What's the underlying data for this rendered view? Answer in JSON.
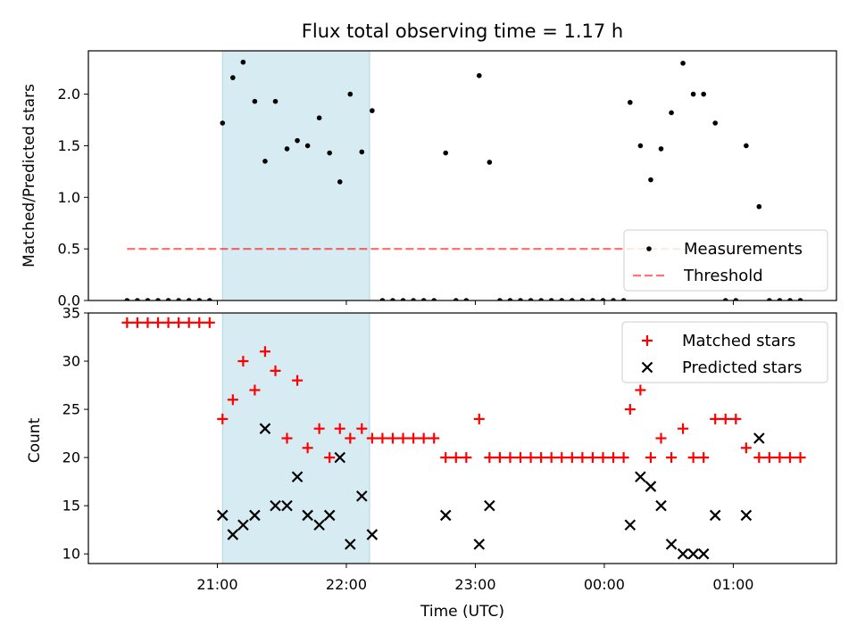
{
  "chart_data": {
    "type": "scatter",
    "title": "Flux total observing time = 1.17 h",
    "xlabel": "Time (UTC)",
    "x_tick_labels": [
      "21:00",
      "22:00",
      "23:00",
      "00:00",
      "01:00"
    ],
    "x_tick_hours": [
      21,
      22,
      23,
      24,
      25
    ],
    "xlim": [
      20.0,
      25.8
    ],
    "shaded_span_hours": [
      21.04,
      22.18
    ],
    "colors": {
      "span": "#add8e6",
      "measurements": "#000000",
      "threshold": "#ff0000",
      "matched": "#ff0000",
      "predicted": "#000000"
    },
    "panels": [
      {
        "ylabel": "Matched/Predicted stars",
        "ylim": [
          0,
          2.42
        ],
        "y_ticks": [
          0.0,
          0.5,
          1.0,
          1.5,
          2.0
        ],
        "y_tick_labels": [
          "0.0",
          "0.5",
          "1.0",
          "1.5",
          "2.0"
        ],
        "threshold": {
          "value": 0.5,
          "x_range": [
            20.3,
            25.53
          ]
        },
        "legend": {
          "position": "lower-right",
          "entries": [
            "Measurements",
            "Threshold"
          ]
        },
        "series": [
          {
            "name": "Measurements",
            "marker": "dot",
            "points": [
              [
                20.3,
                0
              ],
              [
                20.38,
                0
              ],
              [
                20.46,
                0
              ],
              [
                20.54,
                0
              ],
              [
                20.62,
                0
              ],
              [
                20.7,
                0
              ],
              [
                20.78,
                0
              ],
              [
                20.86,
                0
              ],
              [
                20.94,
                0
              ],
              [
                21.04,
                1.72
              ],
              [
                21.12,
                2.16
              ],
              [
                21.2,
                2.31
              ],
              [
                21.29,
                1.93
              ],
              [
                21.37,
                1.35
              ],
              [
                21.45,
                1.93
              ],
              [
                21.54,
                1.47
              ],
              [
                21.62,
                1.55
              ],
              [
                21.7,
                1.5
              ],
              [
                21.79,
                1.77
              ],
              [
                21.87,
                1.43
              ],
              [
                21.95,
                1.15
              ],
              [
                22.03,
                2.0
              ],
              [
                22.12,
                1.44
              ],
              [
                22.2,
                1.84
              ],
              [
                22.28,
                0
              ],
              [
                22.36,
                0
              ],
              [
                22.44,
                0
              ],
              [
                22.52,
                0
              ],
              [
                22.6,
                0
              ],
              [
                22.68,
                0
              ],
              [
                22.77,
                1.43
              ],
              [
                22.85,
                0
              ],
              [
                22.93,
                0
              ],
              [
                23.03,
                2.18
              ],
              [
                23.11,
                1.34
              ],
              [
                23.19,
                0
              ],
              [
                23.27,
                0
              ],
              [
                23.35,
                0
              ],
              [
                23.43,
                0
              ],
              [
                23.51,
                0
              ],
              [
                23.59,
                0
              ],
              [
                23.67,
                0
              ],
              [
                23.75,
                0
              ],
              [
                23.83,
                0
              ],
              [
                23.91,
                0
              ],
              [
                23.99,
                0
              ],
              [
                24.07,
                0
              ],
              [
                24.15,
                0
              ],
              [
                24.2,
                1.92
              ],
              [
                24.28,
                1.5
              ],
              [
                24.36,
                1.17
              ],
              [
                24.44,
                1.47
              ],
              [
                24.52,
                1.82
              ],
              [
                24.61,
                2.3
              ],
              [
                24.69,
                2.0
              ],
              [
                24.77,
                2.0
              ],
              [
                24.86,
                1.72
              ],
              [
                24.94,
                0
              ],
              [
                25.02,
                0
              ],
              [
                25.1,
                1.5
              ],
              [
                25.2,
                0.91
              ],
              [
                25.28,
                0
              ],
              [
                25.36,
                0
              ],
              [
                25.44,
                0
              ],
              [
                25.52,
                0
              ]
            ]
          }
        ]
      },
      {
        "ylabel": "Count",
        "ylim": [
          9.0,
          35.0
        ],
        "y_ticks": [
          10,
          15,
          20,
          25,
          30,
          35
        ],
        "y_tick_labels": [
          "10",
          "15",
          "20",
          "25",
          "30",
          "35"
        ],
        "legend": {
          "position": "upper-right",
          "entries": [
            "Matched stars",
            "Predicted stars"
          ]
        },
        "series": [
          {
            "name": "Matched stars",
            "marker": "plus",
            "points": [
              [
                20.3,
                34
              ],
              [
                20.38,
                34
              ],
              [
                20.46,
                34
              ],
              [
                20.54,
                34
              ],
              [
                20.62,
                34
              ],
              [
                20.7,
                34
              ],
              [
                20.78,
                34
              ],
              [
                20.86,
                34
              ],
              [
                20.94,
                34
              ],
              [
                21.04,
                24
              ],
              [
                21.12,
                26
              ],
              [
                21.2,
                30
              ],
              [
                21.29,
                27
              ],
              [
                21.37,
                31
              ],
              [
                21.45,
                29
              ],
              [
                21.54,
                22
              ],
              [
                21.62,
                28
              ],
              [
                21.7,
                21
              ],
              [
                21.79,
                23
              ],
              [
                21.87,
                20
              ],
              [
                21.95,
                23
              ],
              [
                22.03,
                22
              ],
              [
                22.12,
                23
              ],
              [
                22.2,
                22
              ],
              [
                22.28,
                22
              ],
              [
                22.36,
                22
              ],
              [
                22.44,
                22
              ],
              [
                22.52,
                22
              ],
              [
                22.6,
                22
              ],
              [
                22.68,
                22
              ],
              [
                22.77,
                20
              ],
              [
                22.85,
                20
              ],
              [
                22.93,
                20
              ],
              [
                23.03,
                24
              ],
              [
                23.11,
                20
              ],
              [
                23.19,
                20
              ],
              [
                23.27,
                20
              ],
              [
                23.35,
                20
              ],
              [
                23.43,
                20
              ],
              [
                23.51,
                20
              ],
              [
                23.59,
                20
              ],
              [
                23.67,
                20
              ],
              [
                23.75,
                20
              ],
              [
                23.83,
                20
              ],
              [
                23.91,
                20
              ],
              [
                23.99,
                20
              ],
              [
                24.07,
                20
              ],
              [
                24.15,
                20
              ],
              [
                24.2,
                25
              ],
              [
                24.28,
                27
              ],
              [
                24.36,
                20
              ],
              [
                24.44,
                22
              ],
              [
                24.52,
                20
              ],
              [
                24.61,
                23
              ],
              [
                24.69,
                20
              ],
              [
                24.77,
                20
              ],
              [
                24.86,
                24
              ],
              [
                24.94,
                24
              ],
              [
                25.02,
                24
              ],
              [
                25.1,
                21
              ],
              [
                25.2,
                20
              ],
              [
                25.28,
                20
              ],
              [
                25.36,
                20
              ],
              [
                25.44,
                20
              ],
              [
                25.52,
                20
              ]
            ]
          },
          {
            "name": "Predicted stars",
            "marker": "x",
            "points": [
              [
                21.04,
                14
              ],
              [
                21.12,
                12
              ],
              [
                21.2,
                13
              ],
              [
                21.29,
                14
              ],
              [
                21.37,
                23
              ],
              [
                21.45,
                15
              ],
              [
                21.54,
                15
              ],
              [
                21.62,
                18
              ],
              [
                21.7,
                14
              ],
              [
                21.79,
                13
              ],
              [
                21.87,
                14
              ],
              [
                21.95,
                20
              ],
              [
                22.03,
                11
              ],
              [
                22.12,
                16
              ],
              [
                22.2,
                12
              ],
              [
                22.77,
                14
              ],
              [
                23.03,
                11
              ],
              [
                23.11,
                15
              ],
              [
                24.2,
                13
              ],
              [
                24.28,
                18
              ],
              [
                24.36,
                17
              ],
              [
                24.44,
                15
              ],
              [
                24.52,
                11
              ],
              [
                24.61,
                10
              ],
              [
                24.69,
                10
              ],
              [
                24.77,
                10
              ],
              [
                24.86,
                14
              ],
              [
                25.1,
                14
              ],
              [
                25.2,
                22
              ]
            ]
          }
        ]
      }
    ]
  }
}
